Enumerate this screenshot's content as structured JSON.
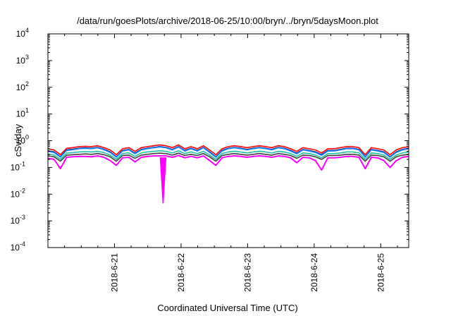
{
  "chart_data": {
    "type": "line",
    "title": "/data/run/goesPlots/archive/2018-06-25/10:00/bryn/../bryn/5daysMoon.plot",
    "xlabel": "Coordinated Universal Time (UTC)",
    "ylabel": "cSv/day",
    "yscale": "log",
    "ylim": [
      0.0001,
      10000
    ],
    "xlim": [
      0,
      5.42
    ],
    "y_ticks": [
      {
        "base": "10",
        "exp": "-4",
        "value": 0.0001
      },
      {
        "base": "10",
        "exp": "-3",
        "value": 0.001
      },
      {
        "base": "10",
        "exp": "-2",
        "value": 0.01
      },
      {
        "base": "10",
        "exp": "-1",
        "value": 0.1
      },
      {
        "base": "10",
        "exp": "0",
        "value": 1
      },
      {
        "base": "10",
        "exp": "1",
        "value": 10
      },
      {
        "base": "10",
        "exp": "2",
        "value": 100
      },
      {
        "base": "10",
        "exp": "3",
        "value": 1000
      },
      {
        "base": "10",
        "exp": "4",
        "value": 10000
      }
    ],
    "x_ticks": [
      {
        "label": "2018-6-21",
        "value": 1
      },
      {
        "label": "2018-6-22",
        "value": 2
      },
      {
        "label": "2018-6-23",
        "value": 3
      },
      {
        "label": "2018-6-24",
        "value": 4
      },
      {
        "label": "2018-6-25",
        "value": 5
      }
    ],
    "grid": false,
    "legend": "none",
    "series": [
      {
        "color": "#ff0000",
        "values": [
          0.5,
          0.45,
          0.3,
          0.52,
          0.55,
          0.6,
          0.62,
          0.6,
          0.65,
          0.55,
          0.45,
          0.3,
          0.5,
          0.55,
          0.4,
          0.55,
          0.6,
          0.65,
          0.7,
          0.65,
          0.55,
          0.7,
          0.5,
          0.6,
          0.5,
          0.65,
          0.45,
          0.3,
          0.5,
          0.6,
          0.65,
          0.6,
          0.55,
          0.6,
          0.65,
          0.6,
          0.55,
          0.65,
          0.6,
          0.5,
          0.4,
          0.55,
          0.5,
          0.45,
          0.35,
          0.5,
          0.5,
          0.55,
          0.6,
          0.6,
          0.55,
          0.3,
          0.55,
          0.5,
          0.45,
          0.3,
          0.45,
          0.55,
          0.6
        ]
      },
      {
        "color": "#000080",
        "values": [
          0.42,
          0.38,
          0.25,
          0.45,
          0.48,
          0.52,
          0.54,
          0.52,
          0.56,
          0.48,
          0.38,
          0.25,
          0.43,
          0.47,
          0.34,
          0.47,
          0.52,
          0.56,
          0.6,
          0.56,
          0.47,
          0.6,
          0.43,
          0.52,
          0.43,
          0.56,
          0.38,
          0.25,
          0.43,
          0.52,
          0.56,
          0.52,
          0.47,
          0.52,
          0.56,
          0.52,
          0.47,
          0.56,
          0.52,
          0.43,
          0.34,
          0.47,
          0.43,
          0.38,
          0.3,
          0.43,
          0.43,
          0.47,
          0.52,
          0.52,
          0.47,
          0.25,
          0.47,
          0.43,
          0.38,
          0.25,
          0.38,
          0.47,
          0.52
        ]
      },
      {
        "color": "#1e90ff",
        "values": [
          0.4,
          0.36,
          0.24,
          0.43,
          0.46,
          0.5,
          0.52,
          0.5,
          0.54,
          0.46,
          0.36,
          0.24,
          0.41,
          0.45,
          0.32,
          0.45,
          0.5,
          0.54,
          0.58,
          0.54,
          0.45,
          0.58,
          0.41,
          0.5,
          0.41,
          0.54,
          0.36,
          0.24,
          0.41,
          0.5,
          0.54,
          0.5,
          0.45,
          0.5,
          0.54,
          0.5,
          0.45,
          0.54,
          0.5,
          0.41,
          0.32,
          0.45,
          0.41,
          0.36,
          0.28,
          0.41,
          0.41,
          0.45,
          0.5,
          0.5,
          0.45,
          0.24,
          0.45,
          0.41,
          0.36,
          0.24,
          0.36,
          0.45,
          0.5
        ]
      },
      {
        "color": "#20c0a0",
        "values": [
          0.32,
          0.29,
          0.2,
          0.34,
          0.36,
          0.38,
          0.39,
          0.38,
          0.4,
          0.36,
          0.29,
          0.2,
          0.33,
          0.35,
          0.26,
          0.35,
          0.38,
          0.4,
          0.42,
          0.4,
          0.35,
          0.42,
          0.33,
          0.38,
          0.33,
          0.4,
          0.29,
          0.2,
          0.33,
          0.38,
          0.4,
          0.38,
          0.35,
          0.38,
          0.4,
          0.38,
          0.35,
          0.4,
          0.38,
          0.33,
          0.26,
          0.35,
          0.33,
          0.29,
          0.23,
          0.33,
          0.33,
          0.35,
          0.38,
          0.38,
          0.35,
          0.2,
          0.35,
          0.33,
          0.29,
          0.2,
          0.29,
          0.35,
          0.38
        ]
      },
      {
        "color": "#404040",
        "values": [
          0.27,
          0.25,
          0.17,
          0.29,
          0.3,
          0.31,
          0.32,
          0.31,
          0.33,
          0.3,
          0.25,
          0.17,
          0.28,
          0.29,
          0.22,
          0.29,
          0.31,
          0.33,
          0.34,
          0.33,
          0.29,
          0.34,
          0.28,
          0.31,
          0.28,
          0.33,
          0.25,
          0.17,
          0.28,
          0.31,
          0.33,
          0.31,
          0.29,
          0.31,
          0.33,
          0.31,
          0.29,
          0.33,
          0.31,
          0.28,
          0.22,
          0.29,
          0.28,
          0.25,
          0.2,
          0.28,
          0.28,
          0.29,
          0.31,
          0.31,
          0.29,
          0.17,
          0.29,
          0.28,
          0.25,
          0.17,
          0.25,
          0.29,
          0.31
        ]
      },
      {
        "color": "#ff00ff",
        "values": [
          0.22,
          0.2,
          0.09,
          0.24,
          0.25,
          0.26,
          0.26,
          0.25,
          0.27,
          0.24,
          0.18,
          0.12,
          0.23,
          0.24,
          0.16,
          0.24,
          0.26,
          0.27,
          0.27,
          0.27,
          0.24,
          0.28,
          0.23,
          0.26,
          0.23,
          0.27,
          0.18,
          0.12,
          0.23,
          0.26,
          0.27,
          0.26,
          0.24,
          0.26,
          0.27,
          0.26,
          0.24,
          0.27,
          0.26,
          0.23,
          0.15,
          0.24,
          0.23,
          0.18,
          0.08,
          0.23,
          0.23,
          0.24,
          0.26,
          0.26,
          0.24,
          0.09,
          0.24,
          0.23,
          0.18,
          0.1,
          0.18,
          0.24,
          0.26
        ]
      }
    ],
    "dip": {
      "x": 1.73,
      "value": 0.0045
    }
  }
}
